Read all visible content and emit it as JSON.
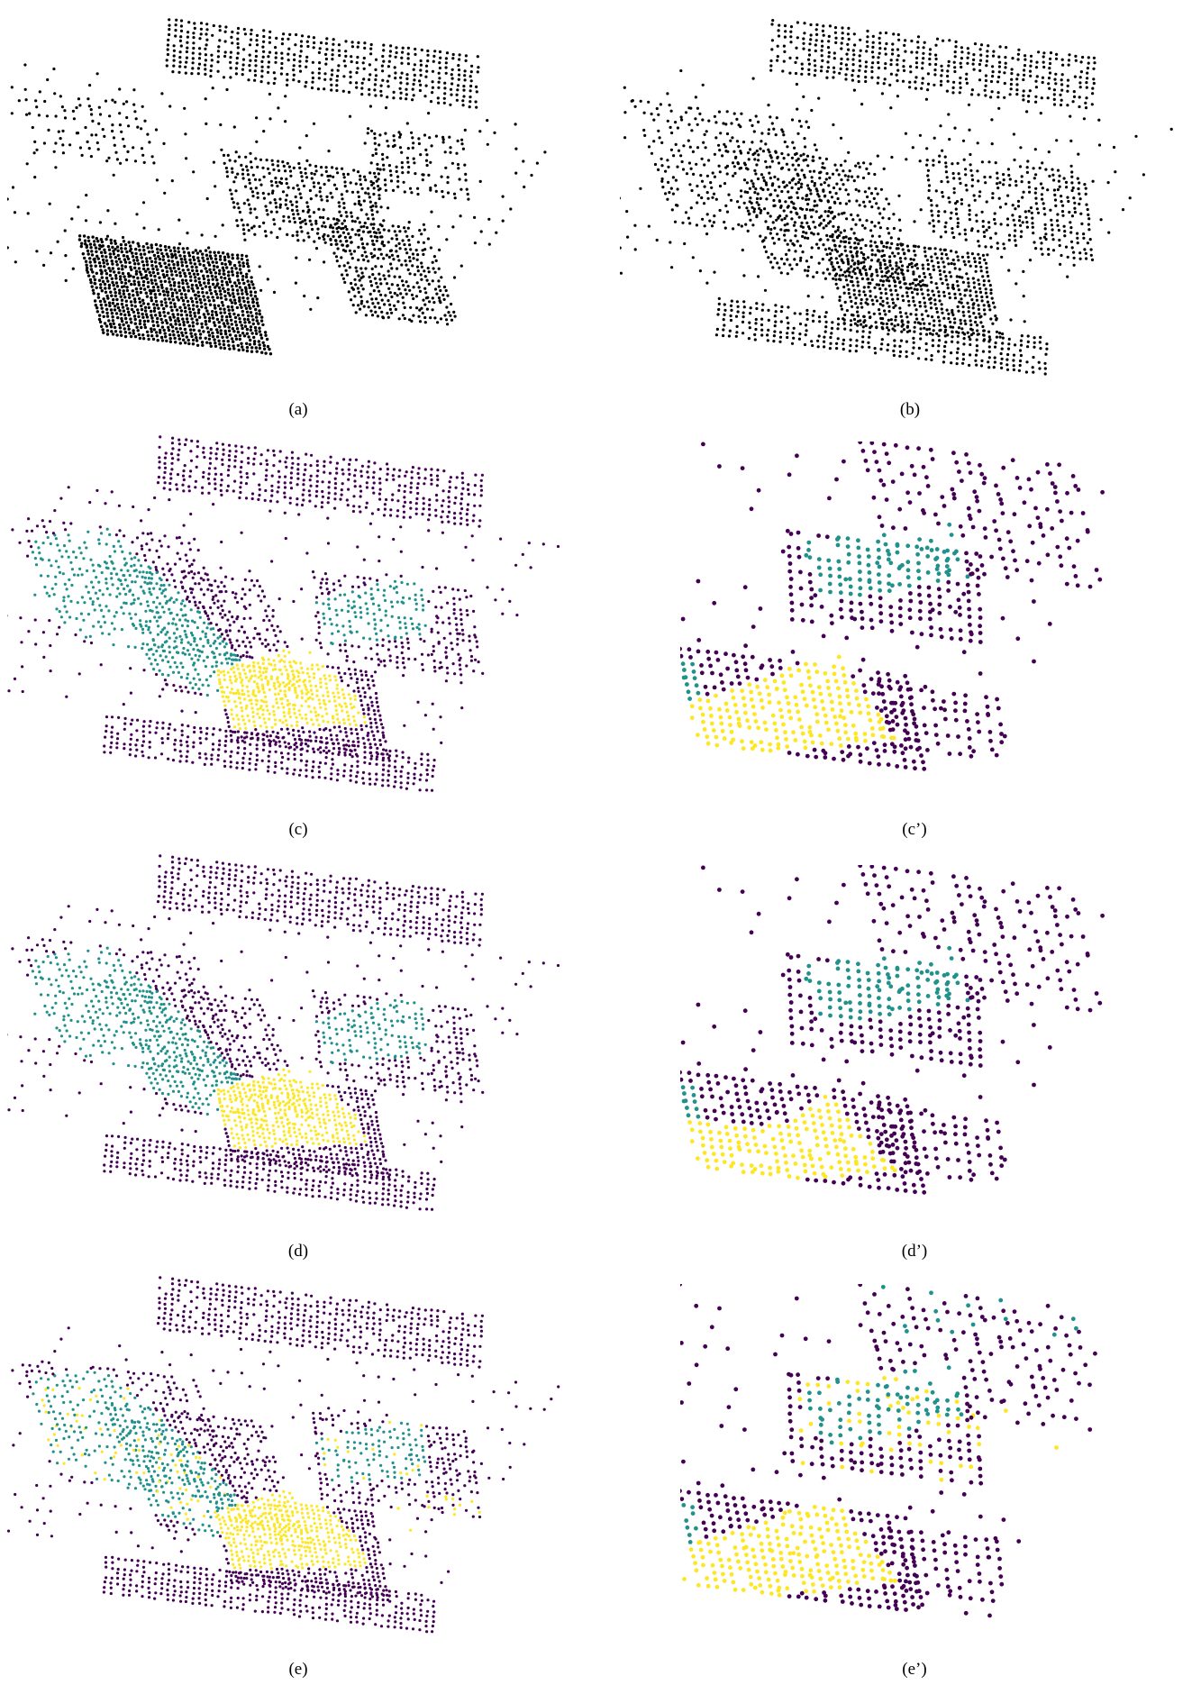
{
  "colors": {
    "background": "#ffffff",
    "raw_points": "#000000",
    "class_0": "#440154",
    "class_1": "#21918c",
    "class_2": "#fde725"
  },
  "panels": [
    {
      "id": "a",
      "caption": "(a)",
      "style": "raw"
    },
    {
      "id": "b",
      "caption": "(b)",
      "style": "raw"
    },
    {
      "id": "c",
      "caption": "(c)",
      "style": "segmented"
    },
    {
      "id": "c2",
      "caption": "(c’)",
      "style": "segmented-zoom"
    },
    {
      "id": "d",
      "caption": "(d)",
      "style": "segmented"
    },
    {
      "id": "d2",
      "caption": "(d’)",
      "style": "segmented-zoom"
    },
    {
      "id": "e",
      "caption": "(e)",
      "style": "segmented"
    },
    {
      "id": "e2",
      "caption": "(e’)",
      "style": "segmented-zoom"
    }
  ]
}
